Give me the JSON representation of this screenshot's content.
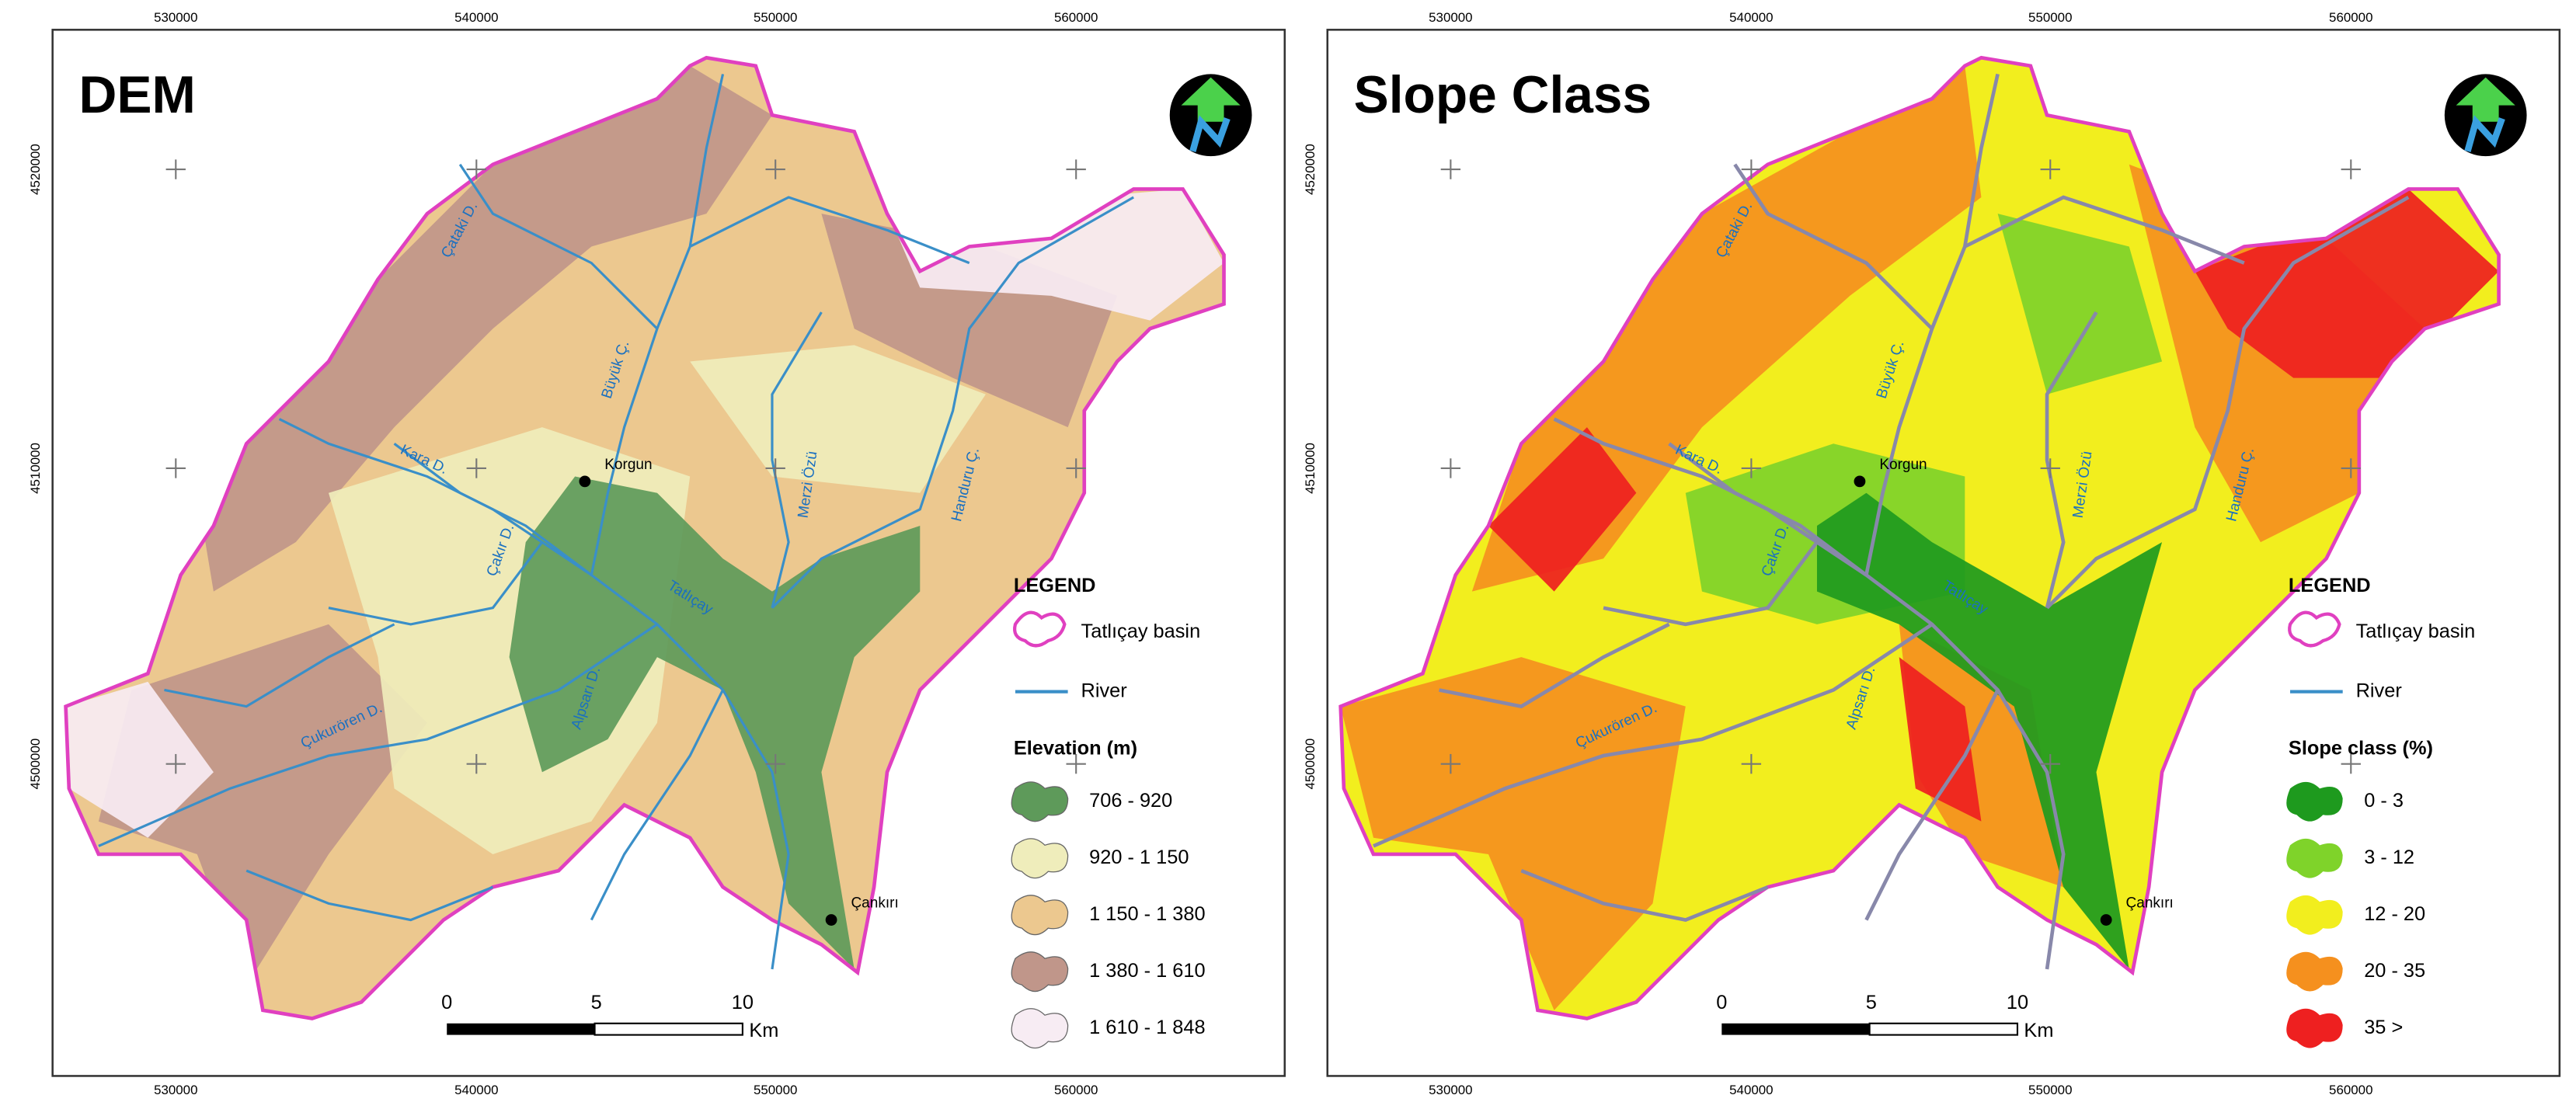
{
  "panels": [
    {
      "title": "DEM",
      "x_labels_top": [
        "530000",
        "540000",
        "550000",
        "560000"
      ],
      "x_labels_bottom": [
        "530000",
        "540000",
        "550000",
        "560000"
      ],
      "y_labels": [
        "4520000",
        "4510000",
        "4500000"
      ],
      "places": [
        {
          "label": "Çataki D."
        },
        {
          "label": "Büyük Ç."
        },
        {
          "label": "Kara D."
        },
        {
          "label": "Korgun"
        },
        {
          "label": "Çakır D."
        },
        {
          "label": "Merzi Özü"
        },
        {
          "label": "Handuru Ç."
        },
        {
          "label": "Tatlıçay"
        },
        {
          "label": "Alpsarı D."
        },
        {
          "label": "Çukurören D."
        },
        {
          "label": "Çankırı"
        }
      ],
      "legend": {
        "title": "LEGEND",
        "basin": "Tatlıçay basin",
        "river": "River",
        "class_title": "Elevation (m)",
        "classes": [
          {
            "label": "706 - 920",
            "color": "#5e9a5a"
          },
          {
            "label": "920 - 1 150",
            "color": "#efedbb"
          },
          {
            "label": "1 150 - 1 380",
            "color": "#ecc88f"
          },
          {
            "label": "1 380 - 1 610",
            "color": "#c0968a"
          },
          {
            "label": "1 610 - 1 848",
            "color": "#f7ecf3"
          }
        ]
      },
      "scale": {
        "ticks": [
          "0",
          "5",
          "10"
        ],
        "unit": "Km"
      }
    },
    {
      "title": "Slope Class",
      "x_labels_top": [
        "530000",
        "540000",
        "550000",
        "560000"
      ],
      "x_labels_bottom": [
        "530000",
        "540000",
        "550000",
        "560000"
      ],
      "y_labels": [
        "4520000",
        "4510000",
        "4500000"
      ],
      "places": [
        {
          "label": "Çataki D."
        },
        {
          "label": "Büyük Ç."
        },
        {
          "label": "Kara D."
        },
        {
          "label": "Korgun"
        },
        {
          "label": "Çakır D."
        },
        {
          "label": "Merzi Özü"
        },
        {
          "label": "Handuru Ç."
        },
        {
          "label": "Tatlıçay"
        },
        {
          "label": "Alpsarı D."
        },
        {
          "label": "Çukurören D."
        },
        {
          "label": "Çankırı"
        }
      ],
      "legend": {
        "title": "LEGEND",
        "basin": "Tatlıçay basin",
        "river": "River",
        "class_title": "Slope class (%)",
        "classes": [
          {
            "label": "0 - 3",
            "color": "#1e9a1e"
          },
          {
            "label": "3 - 12",
            "color": "#7fd32a"
          },
          {
            "label": "12 - 20",
            "color": "#f2ee1e"
          },
          {
            "label": "20 - 35",
            "color": "#f5901e"
          },
          {
            "label": "35 >",
            "color": "#ee2020"
          }
        ]
      },
      "scale": {
        "ticks": [
          "0",
          "5",
          "10"
        ],
        "unit": "Km"
      }
    }
  ]
}
